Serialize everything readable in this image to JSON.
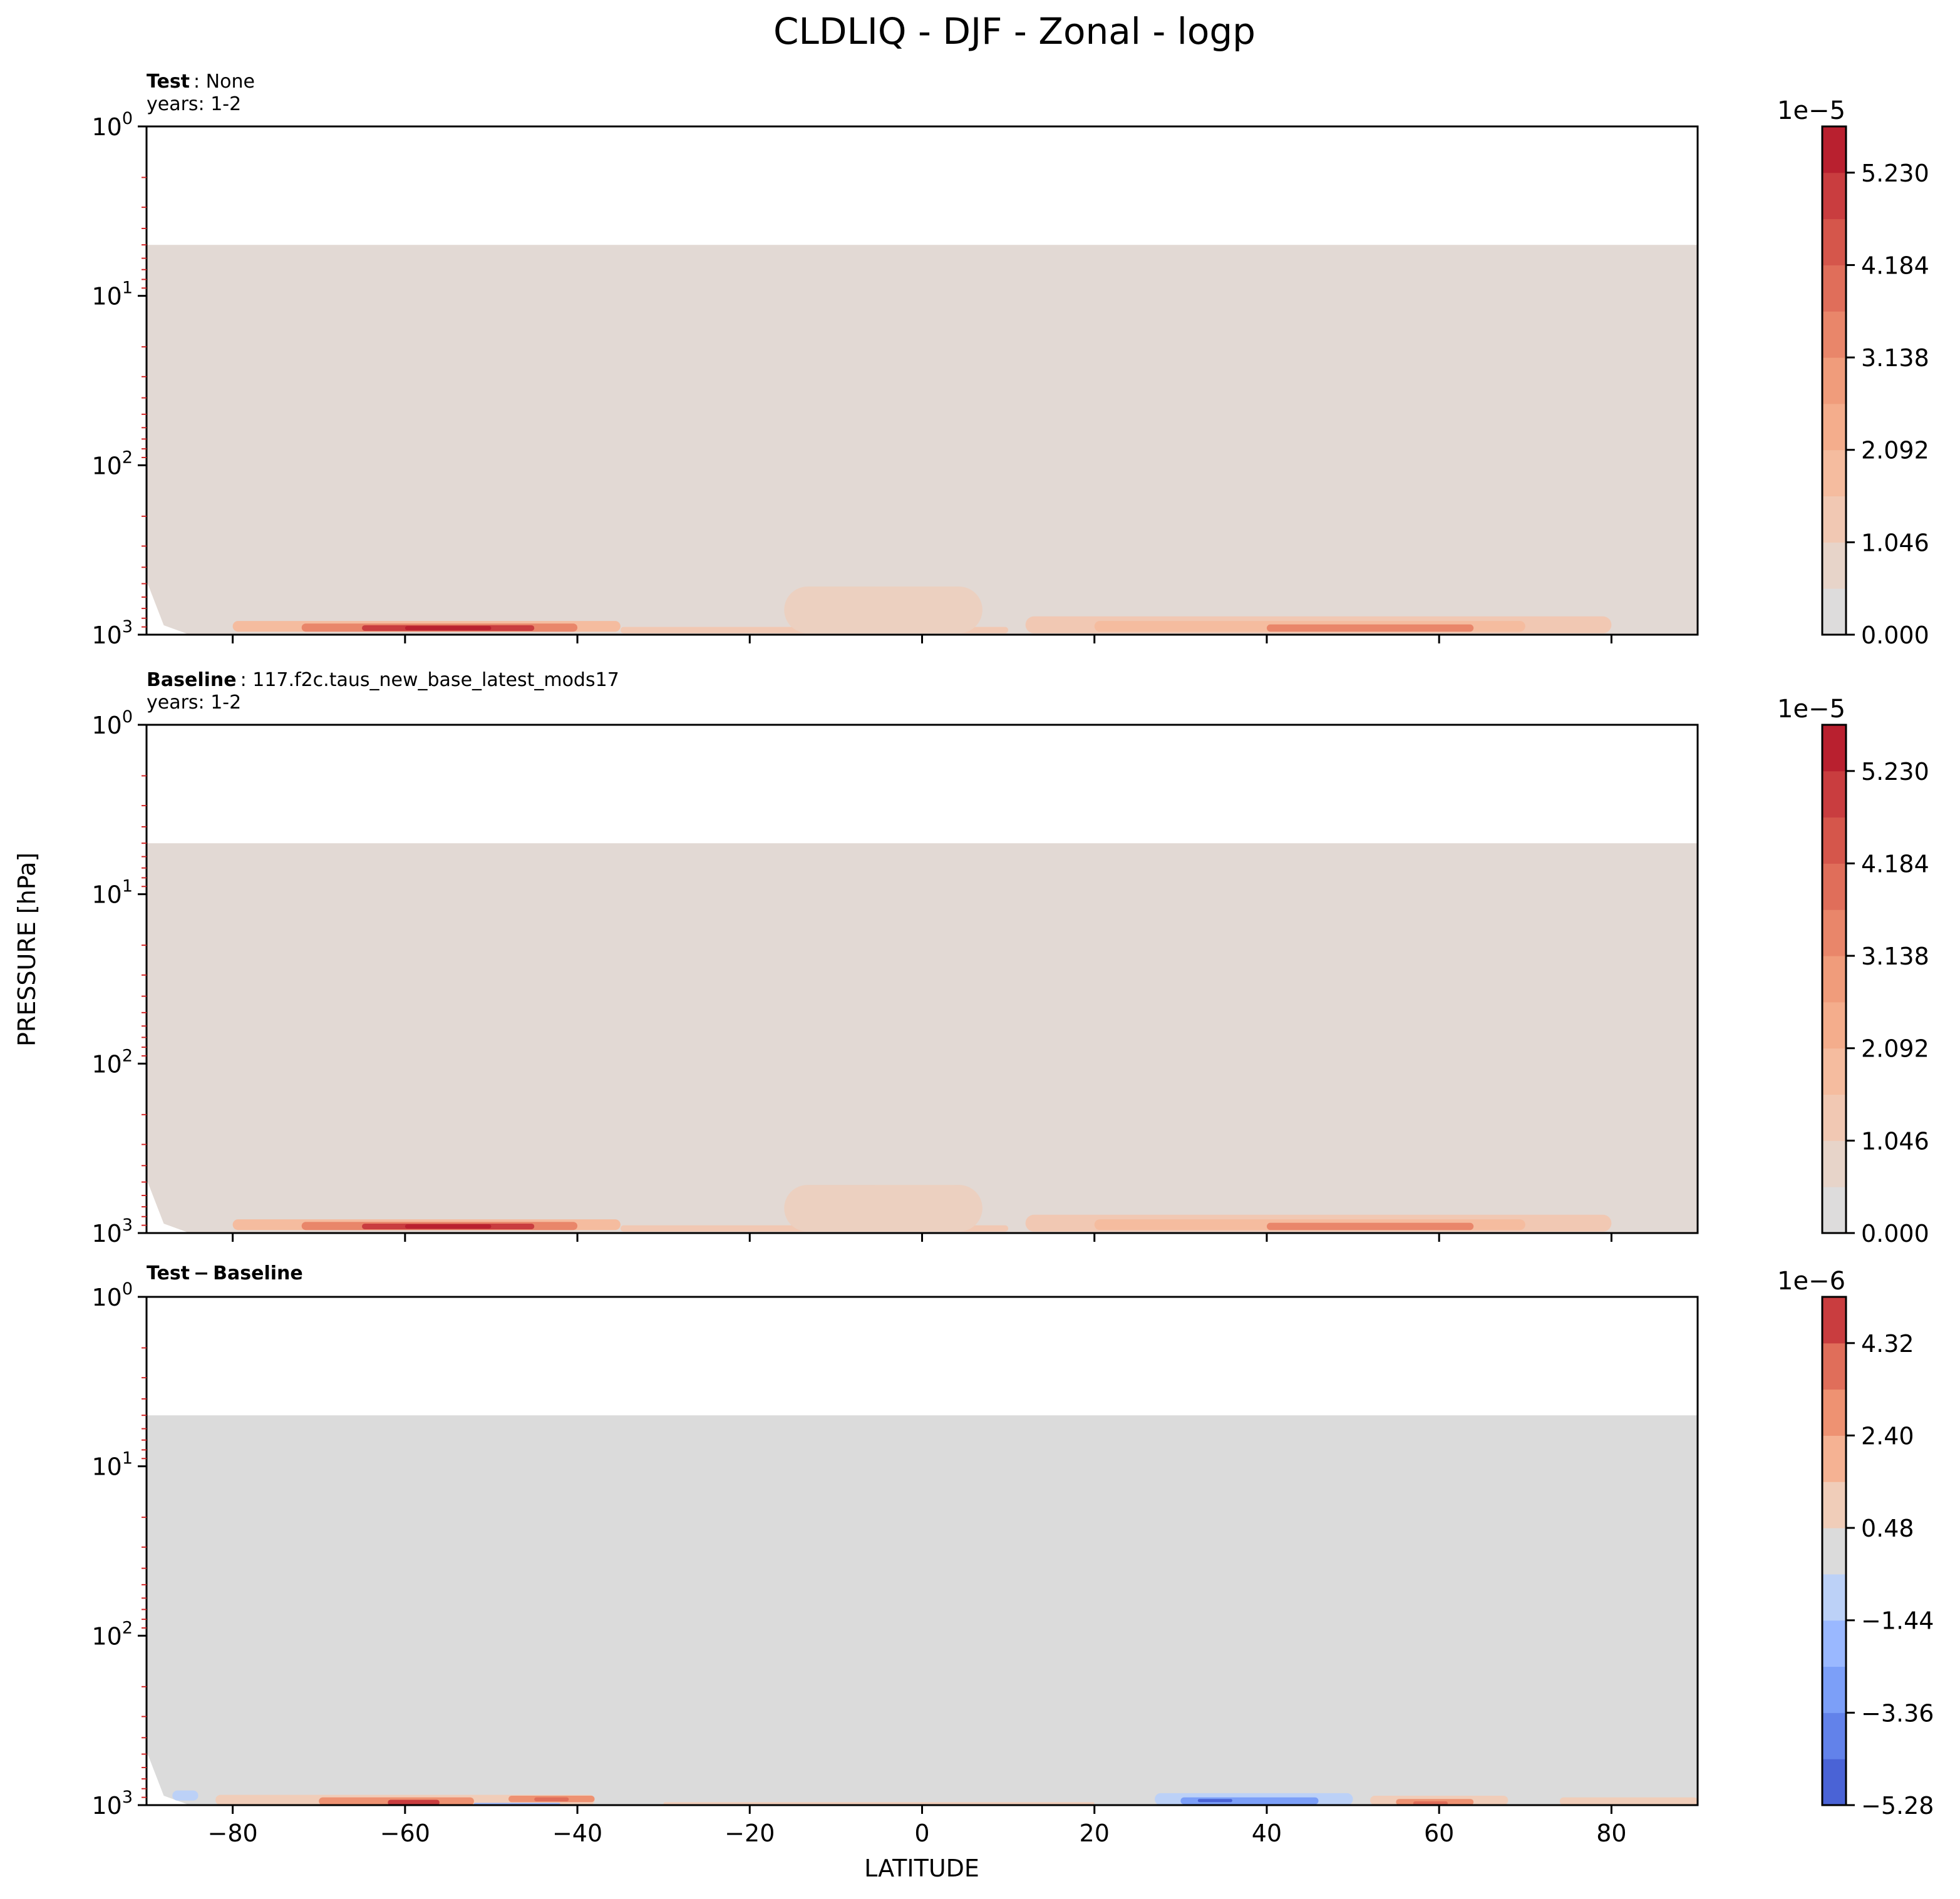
{
  "figure": {
    "title": "CLDLIQ - DJF - Zonal - logp",
    "xlabel": "LATITUDE",
    "ylabel": "PRESSURE [hPa]"
  },
  "colors": {
    "plot_bg": "#ffffff",
    "frame": "#000000",
    "minor_tick": "#d62728"
  },
  "chart_data": [
    {
      "type": "heatmap",
      "panel": "test",
      "title_bold": "Test",
      "title_rest": ": None",
      "subtitle": "years: 1-2",
      "xlim": [
        -90,
        90
      ],
      "ylim": [
        1000,
        1
      ],
      "yscale": "log",
      "x_ticks": [
        -80,
        -60,
        -40,
        -20,
        0,
        20,
        40,
        60,
        80
      ],
      "x_ticklabels_visible": false,
      "y_ticks": [
        {
          "value": 1,
          "base": "10",
          "exp": "0"
        },
        {
          "value": 10,
          "base": "10",
          "exp": "1"
        },
        {
          "value": 100,
          "base": "10",
          "exp": "2"
        },
        {
          "value": 1000,
          "base": "10",
          "exp": "3"
        }
      ],
      "data_top_pressure": 5,
      "background_fill": "#e2d9d4",
      "colorbar": {
        "exponent_label": "1e−5",
        "ticks": [
          "0.000",
          "1.046",
          "2.092",
          "3.138",
          "4.184",
          "5.230"
        ],
        "tick_values": [
          0,
          1.046,
          2.092,
          3.138,
          4.184,
          5.23
        ],
        "range": [
          0,
          5.753
        ],
        "levels": [
          {
            "from": 0.0,
            "to": 0.523,
            "color": "#dddcdc"
          },
          {
            "from": 0.523,
            "to": 1.046,
            "color": "#e7d4c9"
          },
          {
            "from": 1.046,
            "to": 1.569,
            "color": "#f1c8b3"
          },
          {
            "from": 1.569,
            "to": 2.092,
            "color": "#f5bc9f"
          },
          {
            "from": 2.092,
            "to": 2.615,
            "color": "#f4ad8c"
          },
          {
            "from": 2.615,
            "to": 3.138,
            "color": "#f09c7b"
          },
          {
            "from": 3.138,
            "to": 3.661,
            "color": "#e9866a"
          },
          {
            "from": 3.661,
            "to": 4.184,
            "color": "#e06e5a"
          },
          {
            "from": 4.184,
            "to": 4.707,
            "color": "#d5564b"
          },
          {
            "from": 4.707,
            "to": 5.23,
            "color": "#c93d3f"
          },
          {
            "from": 5.23,
            "to": 5.753,
            "color": "#b9202f"
          }
        ]
      },
      "features": [
        {
          "name": "sh-jet-band",
          "lat0": -80,
          "lat1": -35,
          "p0": 830,
          "p1": 960,
          "color": "#f5bc9f"
        },
        {
          "name": "sh-jet-mid",
          "lat0": -72,
          "lat1": -40,
          "p0": 860,
          "p1": 960,
          "color": "#e9866a"
        },
        {
          "name": "sh-jet-core",
          "lat0": -65,
          "lat1": -45,
          "p0": 880,
          "p1": 950,
          "color": "#c93d3f"
        },
        {
          "name": "sh-jet-peak",
          "lat0": -60,
          "lat1": -50,
          "p0": 890,
          "p1": 940,
          "color": "#b9202f"
        },
        {
          "name": "tropics-low",
          "lat0": -35,
          "lat1": 10,
          "p0": 900,
          "p1": 980,
          "color": "#f1c8b3"
        },
        {
          "name": "tropics-lift",
          "lat0": -16,
          "lat1": 7,
          "p0": 520,
          "p1": 980,
          "color": "#ecd0c0"
        },
        {
          "name": "nh-band",
          "lat0": 12,
          "lat1": 80,
          "p0": 780,
          "p1": 980,
          "color": "#f1c8b3"
        },
        {
          "name": "nh-band-mid",
          "lat0": 20,
          "lat1": 70,
          "p0": 830,
          "p1": 960,
          "color": "#f5bc9f"
        },
        {
          "name": "nh-band-core",
          "lat0": 40,
          "lat1": 64,
          "p0": 870,
          "p1": 960,
          "color": "#e9866a"
        }
      ]
    },
    {
      "type": "heatmap",
      "panel": "baseline",
      "title_bold": "Baseline",
      "title_rest": ": 117.f2c.taus_new_base_latest_mods17",
      "subtitle": "years: 1-2",
      "xlim": [
        -90,
        90
      ],
      "ylim": [
        1000,
        1
      ],
      "yscale": "log",
      "x_ticks": [
        -80,
        -60,
        -40,
        -20,
        0,
        20,
        40,
        60,
        80
      ],
      "x_ticklabels_visible": false,
      "y_ticks": [
        {
          "value": 1,
          "base": "10",
          "exp": "0"
        },
        {
          "value": 10,
          "base": "10",
          "exp": "1"
        },
        {
          "value": 100,
          "base": "10",
          "exp": "2"
        },
        {
          "value": 1000,
          "base": "10",
          "exp": "3"
        }
      ],
      "data_top_pressure": 5,
      "background_fill": "#e2d9d4",
      "colorbar": {
        "exponent_label": "1e−5",
        "ticks": [
          "0.000",
          "1.046",
          "2.092",
          "3.138",
          "4.184",
          "5.230"
        ],
        "tick_values": [
          0,
          1.046,
          2.092,
          3.138,
          4.184,
          5.23
        ],
        "range": [
          0,
          5.753
        ],
        "levels": [
          {
            "from": 0.0,
            "to": 0.523,
            "color": "#dddcdc"
          },
          {
            "from": 0.523,
            "to": 1.046,
            "color": "#e7d4c9"
          },
          {
            "from": 1.046,
            "to": 1.569,
            "color": "#f1c8b3"
          },
          {
            "from": 1.569,
            "to": 2.092,
            "color": "#f5bc9f"
          },
          {
            "from": 2.092,
            "to": 2.615,
            "color": "#f4ad8c"
          },
          {
            "from": 2.615,
            "to": 3.138,
            "color": "#f09c7b"
          },
          {
            "from": 3.138,
            "to": 3.661,
            "color": "#e9866a"
          },
          {
            "from": 3.661,
            "to": 4.184,
            "color": "#e06e5a"
          },
          {
            "from": 4.184,
            "to": 4.707,
            "color": "#d5564b"
          },
          {
            "from": 4.707,
            "to": 5.23,
            "color": "#c93d3f"
          },
          {
            "from": 5.23,
            "to": 5.753,
            "color": "#b9202f"
          }
        ]
      },
      "features": [
        {
          "name": "sh-jet-band",
          "lat0": -80,
          "lat1": -35,
          "p0": 830,
          "p1": 960,
          "color": "#f5bc9f"
        },
        {
          "name": "sh-jet-mid",
          "lat0": -72,
          "lat1": -40,
          "p0": 860,
          "p1": 960,
          "color": "#e9866a"
        },
        {
          "name": "sh-jet-core",
          "lat0": -65,
          "lat1": -45,
          "p0": 880,
          "p1": 950,
          "color": "#c93d3f"
        },
        {
          "name": "sh-jet-peak",
          "lat0": -60,
          "lat1": -50,
          "p0": 890,
          "p1": 940,
          "color": "#b9202f"
        },
        {
          "name": "tropics-low",
          "lat0": -35,
          "lat1": 10,
          "p0": 900,
          "p1": 980,
          "color": "#f1c8b3"
        },
        {
          "name": "tropics-lift",
          "lat0": -16,
          "lat1": 7,
          "p0": 520,
          "p1": 980,
          "color": "#ecd0c0"
        },
        {
          "name": "nh-band",
          "lat0": 12,
          "lat1": 80,
          "p0": 780,
          "p1": 980,
          "color": "#f1c8b3"
        },
        {
          "name": "nh-band-mid",
          "lat0": 20,
          "lat1": 70,
          "p0": 830,
          "p1": 960,
          "color": "#f5bc9f"
        },
        {
          "name": "nh-band-core",
          "lat0": 40,
          "lat1": 64,
          "p0": 870,
          "p1": 960,
          "color": "#e9866a"
        }
      ]
    },
    {
      "type": "heatmap",
      "panel": "difference",
      "title_bold": "Test − Baseline",
      "title_rest": "",
      "subtitle": "",
      "xlim": [
        -90,
        90
      ],
      "ylim": [
        1000,
        1
      ],
      "yscale": "log",
      "x_ticks": [
        -80,
        -60,
        -40,
        -20,
        0,
        20,
        40,
        60,
        80
      ],
      "x_ticklabels_visible": true,
      "x_ticklabels": [
        "−80",
        "−60",
        "−40",
        "−20",
        "0",
        "20",
        "40",
        "60",
        "80"
      ],
      "y_ticks": [
        {
          "value": 1,
          "base": "10",
          "exp": "0"
        },
        {
          "value": 10,
          "base": "10",
          "exp": "1"
        },
        {
          "value": 100,
          "base": "10",
          "exp": "2"
        },
        {
          "value": 1000,
          "base": "10",
          "exp": "3"
        }
      ],
      "data_top_pressure": 5,
      "background_fill": "#dbdbdb",
      "colorbar": {
        "exponent_label": "1e−6",
        "ticks": [
          "−5.28",
          "−3.36",
          "−1.44",
          "0.48",
          "2.40",
          "4.32"
        ],
        "tick_values": [
          -5.28,
          -3.36,
          -1.44,
          0.48,
          2.4,
          4.32
        ],
        "range": [
          -5.28,
          5.28
        ],
        "levels": [
          {
            "from": -5.28,
            "to": -4.32,
            "color": "#4a63d6"
          },
          {
            "from": -4.32,
            "to": -3.36,
            "color": "#6282ea"
          },
          {
            "from": -3.36,
            "to": -2.4,
            "color": "#7c9ff8"
          },
          {
            "from": -2.4,
            "to": -1.44,
            "color": "#9ab8ff"
          },
          {
            "from": -1.44,
            "to": -0.48,
            "color": "#bcd1f7"
          },
          {
            "from": -0.48,
            "to": 0.48,
            "color": "#dbdbdb"
          },
          {
            "from": 0.48,
            "to": 1.44,
            "color": "#f0cdb9"
          },
          {
            "from": 1.44,
            "to": 2.4,
            "color": "#f5b293"
          },
          {
            "from": 2.4,
            "to": 3.36,
            "color": "#ee9272"
          },
          {
            "from": 3.36,
            "to": 4.32,
            "color": "#e06e5a"
          },
          {
            "from": 4.32,
            "to": 5.28,
            "color": "#c93d3f"
          }
        ]
      },
      "features": [
        {
          "name": "sh-pos-band",
          "lat0": -82,
          "lat1": -38,
          "p0": 870,
          "p1": 1000,
          "color": "#f0cdb9"
        },
        {
          "name": "sh-pos-mid-a",
          "lat0": -70,
          "lat1": -52,
          "p0": 900,
          "p1": 1000,
          "color": "#ee9272"
        },
        {
          "name": "sh-pos-mid-b",
          "lat0": -48,
          "lat1": -38,
          "p0": 880,
          "p1": 960,
          "color": "#ee9272"
        },
        {
          "name": "sh-pos-core",
          "lat0": -62,
          "lat1": -56,
          "p0": 930,
          "p1": 1000,
          "color": "#c93d3f"
        },
        {
          "name": "sh-pos-core-b",
          "lat0": -45,
          "lat1": -41,
          "p0": 900,
          "p1": 950,
          "color": "#e06e5a"
        },
        {
          "name": "sh-neg-edge",
          "lat0": -87,
          "lat1": -84,
          "p0": 820,
          "p1": 940,
          "color": "#bcd1f7"
        },
        {
          "name": "sh-neg-low",
          "lat0": -52,
          "lat1": -42,
          "p0": 970,
          "p1": 1000,
          "color": "#9ab8ff"
        },
        {
          "name": "nh-neg-band",
          "lat0": 27,
          "lat1": 50,
          "p0": 850,
          "p1": 1000,
          "color": "#bcd1f7"
        },
        {
          "name": "nh-neg-mid",
          "lat0": 30,
          "lat1": 46,
          "p0": 900,
          "p1": 990,
          "color": "#7c9ff8"
        },
        {
          "name": "nh-neg-core",
          "lat0": 32,
          "lat1": 36,
          "p0": 920,
          "p1": 960,
          "color": "#4a63d6"
        },
        {
          "name": "nh-pos-band",
          "lat0": 52,
          "lat1": 68,
          "p0": 880,
          "p1": 1000,
          "color": "#f0cdb9"
        },
        {
          "name": "nh-pos-mid",
          "lat0": 55,
          "lat1": 64,
          "p0": 920,
          "p1": 1000,
          "color": "#ee9272"
        },
        {
          "name": "nh-pos-core",
          "lat0": 57,
          "lat1": 61,
          "p0": 950,
          "p1": 1000,
          "color": "#e06e5a"
        },
        {
          "name": "arctic-pos",
          "lat0": 74,
          "lat1": 90,
          "p0": 900,
          "p1": 1000,
          "color": "#f0cdb9"
        },
        {
          "name": "tropics-pos",
          "lat0": -30,
          "lat1": 20,
          "p0": 960,
          "p1": 1000,
          "color": "#f0cdb9"
        }
      ]
    }
  ]
}
